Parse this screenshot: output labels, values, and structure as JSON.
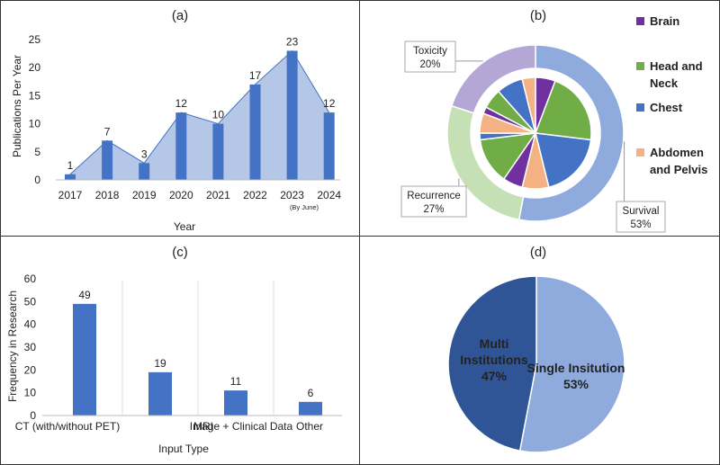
{
  "panels": {
    "a": "(a)",
    "b": "(b)",
    "c": "(c)",
    "d": "(d)"
  },
  "chart_data": [
    {
      "panel": "(a)",
      "type": "bar",
      "categories": [
        "2017",
        "2018",
        "2019",
        "2020",
        "2021",
        "2022",
        "2023",
        "2024"
      ],
      "category_note": "(By June)",
      "values": [
        1,
        7,
        3,
        12,
        10,
        17,
        23,
        12
      ],
      "area_overlay": true,
      "xlabel": "Year",
      "ylabel": "Publications Per Year",
      "ylim": [
        0,
        25
      ],
      "yticks": [
        0,
        5,
        10,
        15,
        20,
        25
      ],
      "grid": false,
      "colors": {
        "bar": "#4472C4",
        "area": "#B4C7E7",
        "line": "#4472C4"
      }
    },
    {
      "panel": "(b)",
      "type": "pie",
      "variant": "nested-donut",
      "outer": {
        "slices": [
          {
            "label": "Survival",
            "pct": "53%",
            "value": 53,
            "color": "#8FAADC"
          },
          {
            "label": "Recurrence",
            "pct": "27%",
            "value": 27,
            "color": "#C5E0B4"
          },
          {
            "label": "Toxicity",
            "pct": "20%",
            "value": 20,
            "color": "#B4A7D6"
          }
        ]
      },
      "inner": {
        "slices": [
          {
            "group": "Survival",
            "category": "Brain",
            "value": 3
          },
          {
            "group": "Survival",
            "category": "Head and Neck",
            "value": 11
          },
          {
            "group": "Survival",
            "category": "Chest",
            "value": 10
          },
          {
            "group": "Survival",
            "category": "Abdomen and Pelvis",
            "value": 4
          },
          {
            "group": "Recurrence",
            "category": "Brain",
            "value": 3
          },
          {
            "group": "Recurrence",
            "category": "Head and Neck",
            "value": 7
          },
          {
            "group": "Recurrence",
            "category": "Chest",
            "value": 1
          },
          {
            "group": "Recurrence",
            "category": "Abdomen and Pelvis",
            "value": 3
          },
          {
            "group": "Toxicity",
            "category": "Brain",
            "value": 1
          },
          {
            "group": "Toxicity",
            "category": "Head and Neck",
            "value": 3
          },
          {
            "group": "Toxicity",
            "category": "Chest",
            "value": 4
          },
          {
            "group": "Toxicity",
            "category": "Abdomen and Pelvis",
            "value": 2
          }
        ]
      },
      "legend": [
        {
          "label": "Brain",
          "color": "#7030A0"
        },
        {
          "label": "Head and Neck",
          "color": "#70AD47"
        },
        {
          "label": "Chest",
          "color": "#4472C4"
        },
        {
          "label": "Abdomen and Pelvis",
          "color": "#F4B183"
        }
      ],
      "legend_position": "right"
    },
    {
      "panel": "(c)",
      "type": "bar",
      "categories": [
        "CT (with/without PET)",
        "MRI",
        "Image + Clinical Data",
        "Other"
      ],
      "values": [
        49,
        19,
        11,
        6
      ],
      "xlabel": "Input Type",
      "ylabel": "Frequency in Research",
      "ylim": [
        0,
        60
      ],
      "yticks": [
        0,
        10,
        20,
        30,
        40,
        50,
        60
      ],
      "grid": false,
      "category_separators": true,
      "colors": {
        "bar": "#4472C4"
      }
    },
    {
      "panel": "(d)",
      "type": "pie",
      "slices": [
        {
          "label": "Single Insitution",
          "pct": "53%",
          "value": 53,
          "color": "#8FAADC"
        },
        {
          "label": "Multi Institutions",
          "pct": "47%",
          "value": 47,
          "color": "#2F5597"
        }
      ]
    }
  ]
}
